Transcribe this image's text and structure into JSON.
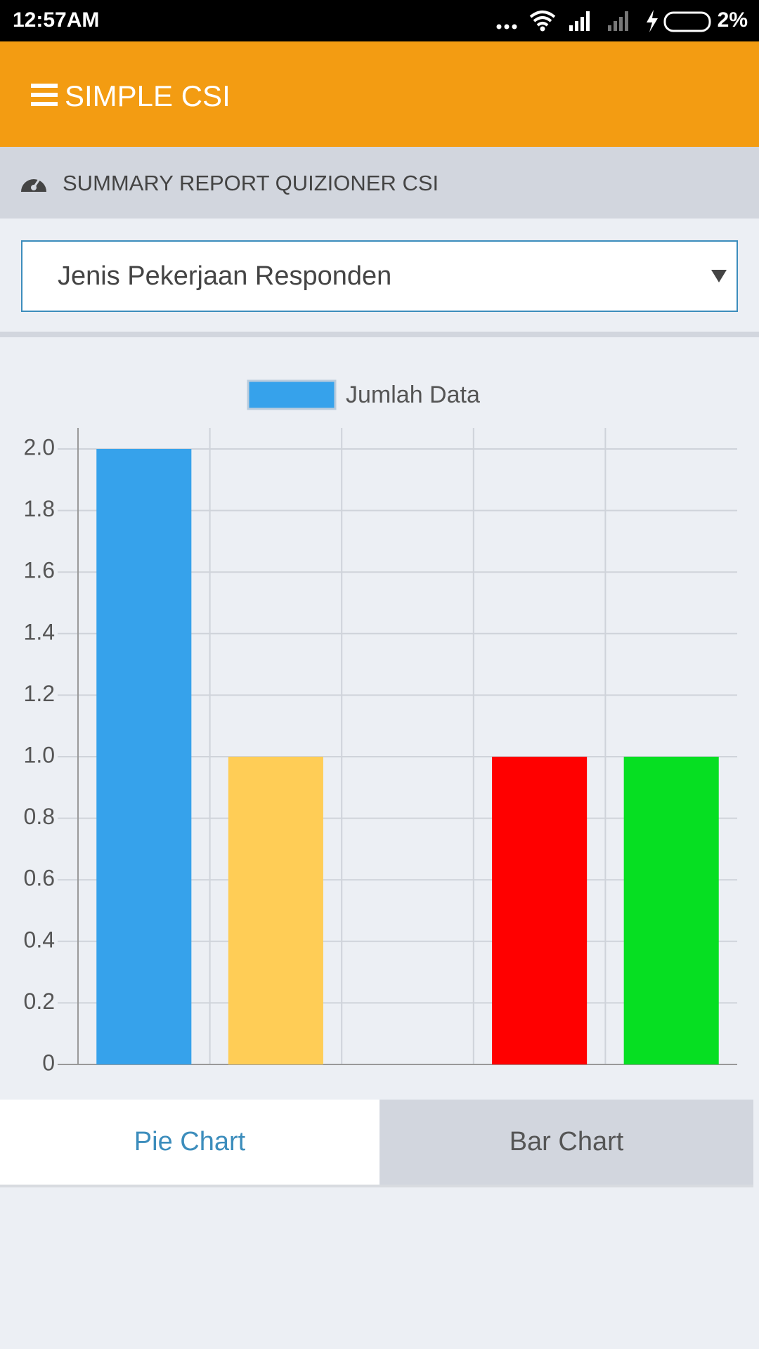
{
  "status_bar": {
    "time": "12:57AM",
    "battery": "2%"
  },
  "app_bar": {
    "title": "SIMPLE CSI"
  },
  "header": {
    "title": "SUMMARY REPORT QUIZIONER CSI"
  },
  "dropdown": {
    "selected": "Jenis Pekerjaan Responden"
  },
  "chart_data": {
    "type": "bar",
    "categories": [
      null,
      null,
      null,
      null,
      null
    ],
    "series": [
      {
        "name": "Jumlah Data",
        "color": "#36a2eb",
        "values": [
          2,
          1,
          0,
          1,
          1
        ]
      }
    ],
    "colors": [
      "#36a2eb",
      "#ffcd56",
      "#ff0000",
      "#ff0000",
      "#06df22"
    ],
    "ylim": [
      0,
      2
    ],
    "yticks": [
      0,
      0.2,
      0.4,
      0.6,
      0.8,
      {
        "value": 1,
        "label": "1.0"
      },
      1.2,
      1.4,
      1.6,
      1.8,
      {
        "value": 2,
        "label": "2.0"
      }
    ],
    "grid": true,
    "legend": "top"
  },
  "tabs": [
    "Pie Chart",
    "Bar Chart"
  ]
}
